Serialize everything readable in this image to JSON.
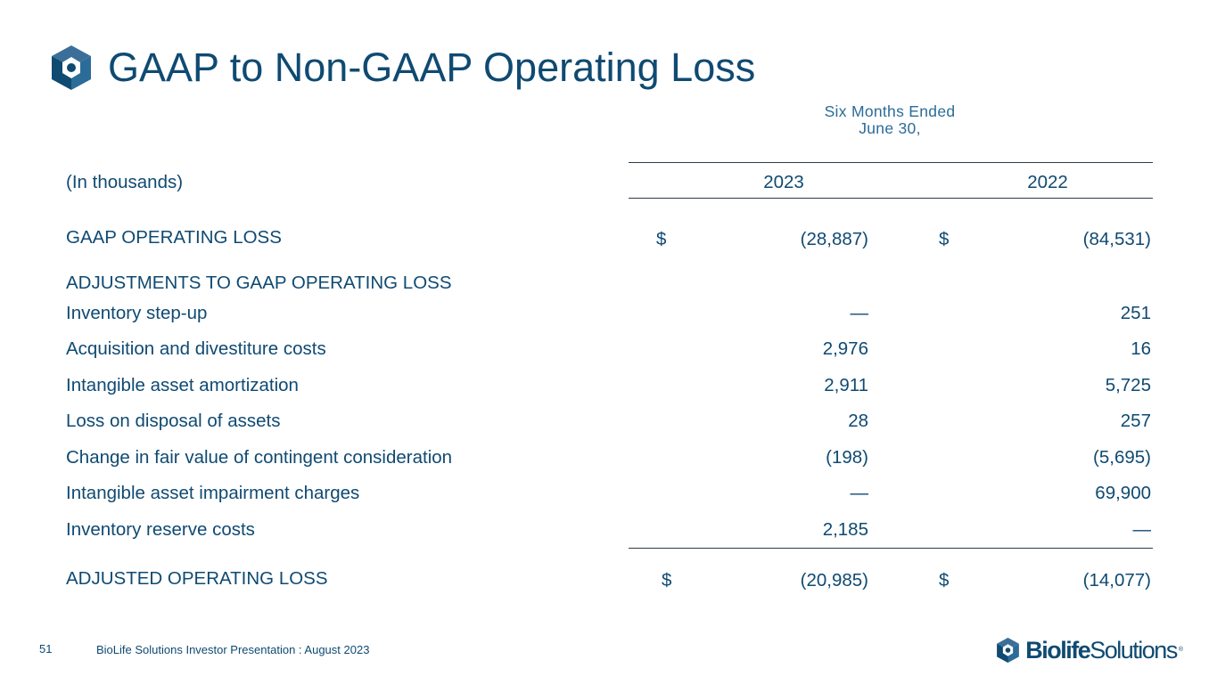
{
  "title": "GAAP to Non-GAAP Operating Loss",
  "period_line1": "Six Months Ended",
  "period_line2": "June 30,",
  "units": "(In thousands)",
  "years": [
    "2023",
    "2022"
  ],
  "gaap": {
    "label": "GAAP OPERATING LOSS",
    "currency": "$",
    "v2023": "(28,887)",
    "v2022": "(84,531)"
  },
  "adjustments_header": "ADJUSTMENTS TO GAAP OPERATING LOSS",
  "rows": [
    {
      "label": "Inventory step-up",
      "v2023": "—",
      "v2022": "251"
    },
    {
      "label": "Acquisition and divestiture costs",
      "v2023": "2,976",
      "v2022": "16"
    },
    {
      "label": "Intangible asset amortization",
      "v2023": "2,911",
      "v2022": "5,725"
    },
    {
      "label": "Loss on disposal of assets",
      "v2023": "28",
      "v2022": "257"
    },
    {
      "label": "Change in fair value of contingent consideration",
      "v2023": "(198)",
      "v2022": "(5,695)"
    },
    {
      "label": "Intangible asset impairment charges",
      "v2023": "—",
      "v2022": "69,900"
    },
    {
      "label": "Inventory reserve costs",
      "v2023": "2,185",
      "v2022": "—"
    }
  ],
  "adjusted": {
    "label": "ADJUSTED OPERATING LOSS",
    "currency": "$",
    "v2023": "(20,985)",
    "v2022": "(14,077)"
  },
  "footer": {
    "page_number": "51",
    "text": "BioLife Solutions Investor Presentation : August 2023"
  },
  "brand": {
    "part1": "Biolife",
    "part2": "Solutions",
    "registered": "®"
  },
  "colors": {
    "primary": "#0f4a72",
    "accent": "#2b6c98",
    "rule": "#2e3b46"
  }
}
